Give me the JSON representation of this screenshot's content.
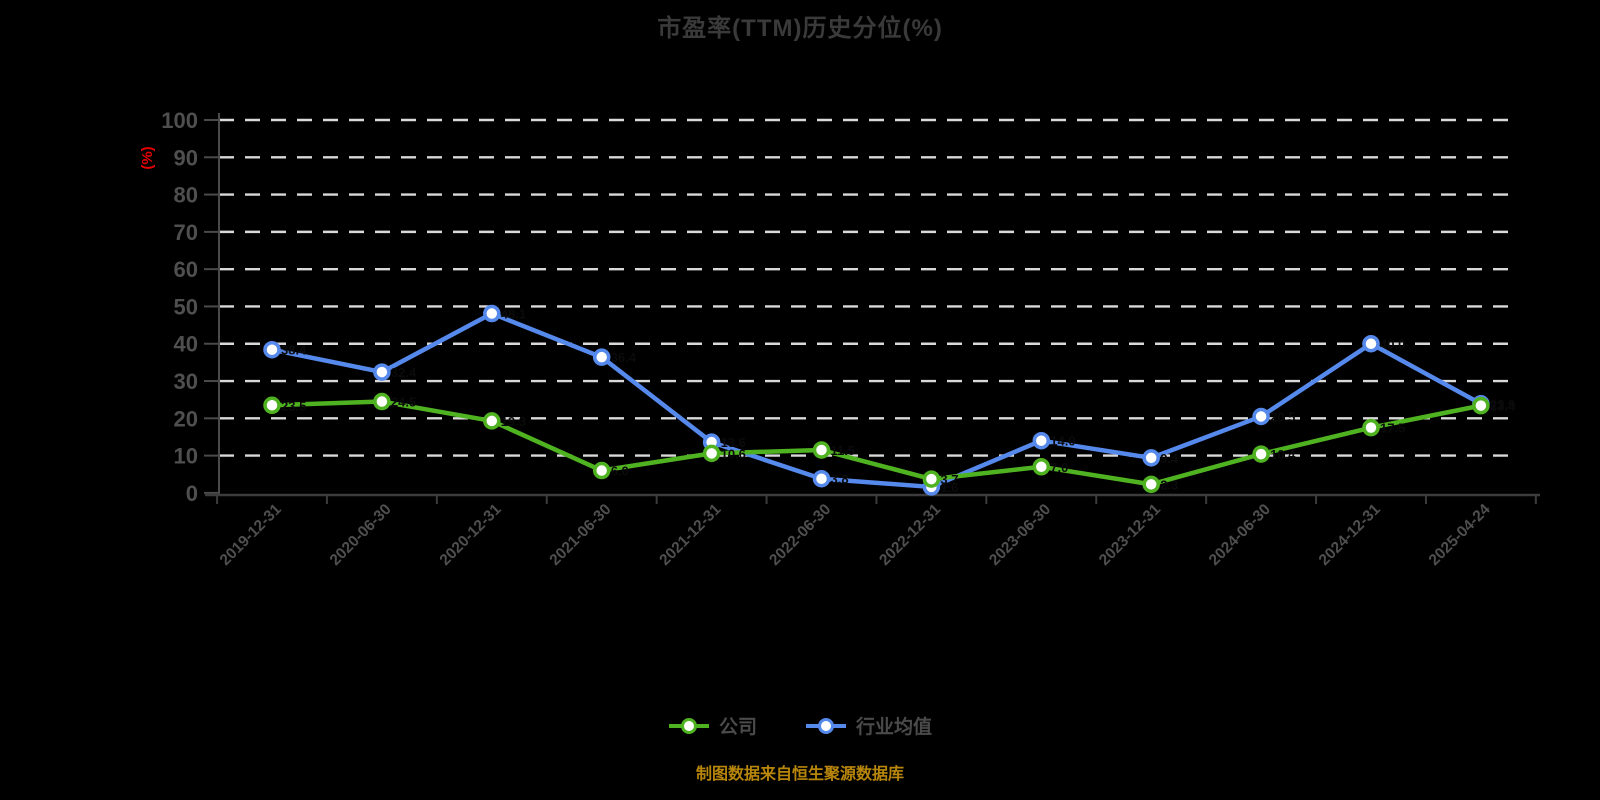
{
  "page": {
    "background_color": "#000000"
  },
  "chart_data": {
    "type": "line",
    "title": "市盈率(TTM)历史分位(%)",
    "xlabel": "",
    "ylabel": "(%)",
    "ylim": [
      0,
      100
    ],
    "y_ticks": [
      0,
      10,
      20,
      30,
      40,
      50,
      60,
      70,
      80,
      90,
      100
    ],
    "grid": "horizontal-dashed",
    "legend_position": "bottom",
    "categories": [
      "2019-12-31",
      "2020-06-30",
      "2020-12-31",
      "2021-06-30",
      "2021-12-31",
      "2022-06-30",
      "2022-12-31",
      "2023-06-30",
      "2023-12-31",
      "2024-06-30",
      "2024-12-31",
      "2025-04-24"
    ],
    "series": [
      {
        "name": "公司",
        "color": "#4fb321",
        "marker": "empty-circle",
        "values": [
          23.5,
          24.5,
          19.3,
          6.0,
          10.6,
          11.5,
          3.7,
          7.0,
          2.3,
          10.4,
          17.5,
          23.4
        ],
        "labels": [
          "23.5",
          "24.5",
          "19.3",
          "6.0",
          "10.6",
          "11.5",
          "3.7",
          "7.0",
          "2.3",
          "10.4",
          "17.5",
          "23.4"
        ]
      },
      {
        "name": "行业均值",
        "color": "#5689ec",
        "marker": "empty-circle",
        "values": [
          38.4,
          32.4,
          48.1,
          36.4,
          13.6,
          3.8,
          1.6,
          14.0,
          9.4,
          20.5,
          40.0,
          23.9
        ],
        "labels": [
          "38.4",
          "32.4",
          "48.1",
          "36.4",
          "13.6",
          "3.8",
          "1.6",
          "14.0",
          "9.4",
          "20.5",
          "40.0",
          "23.9"
        ]
      }
    ]
  },
  "footer": {
    "text": "制图数据来自恒生聚源数据库",
    "color": "#b8860b"
  },
  "style_colors": {
    "title_text": "#3a3a3a",
    "axis_line": "#4a4a4a",
    "x_axis_line": "#3c3c3c",
    "tick_label": "#4f4f4f",
    "grid_dash": "#d9d9d9",
    "unit_label": "#e60000",
    "legend_text": "#4a4a4a",
    "data_label": "#0b0b0b",
    "marker_fill": "#ffffff"
  }
}
